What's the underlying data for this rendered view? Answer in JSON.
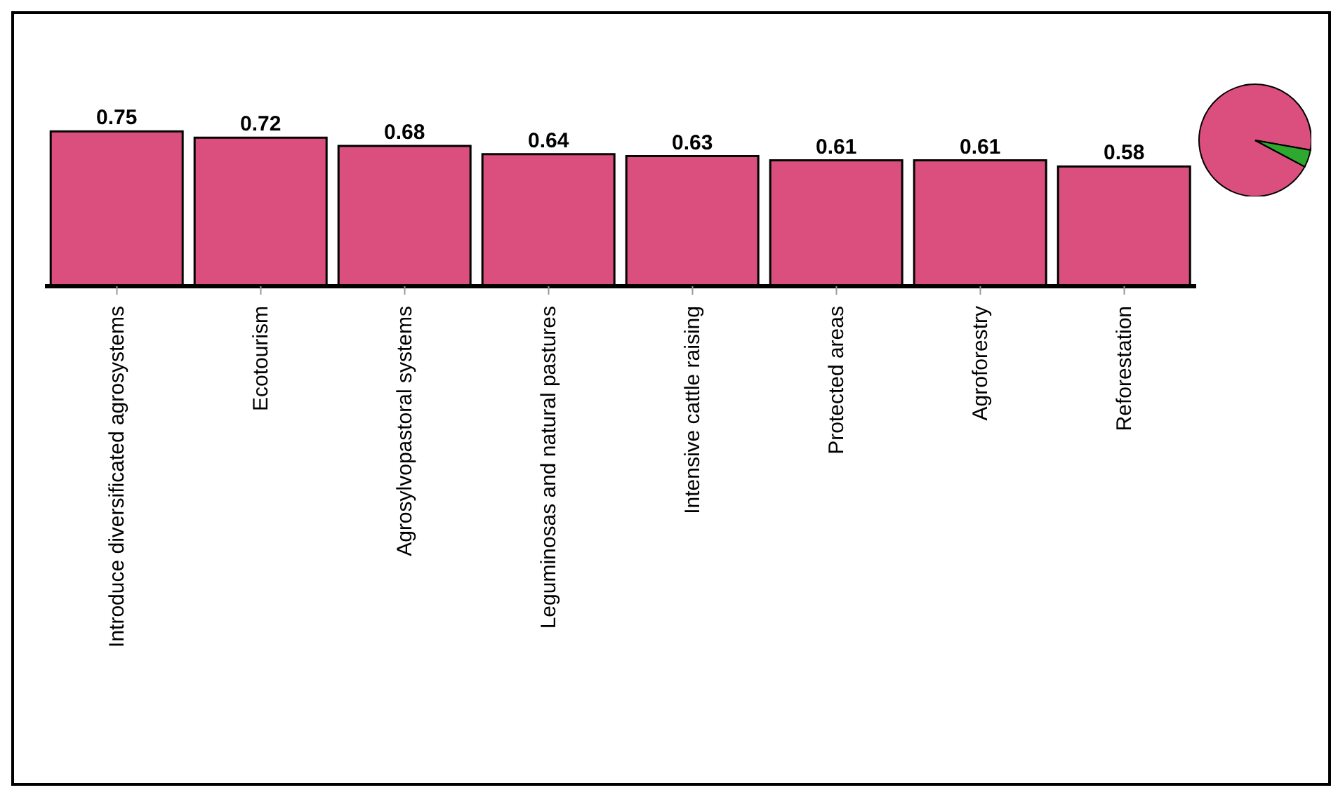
{
  "chart_data": [
    {
      "type": "bar",
      "categories": [
        "Introduce diversificated agrosystems",
        "Ecotourism",
        "Agrosylvopastoral systems",
        "Leguminosas and natural pastures",
        "Intensive cattle raising",
        "Protected areas",
        "Agroforestry",
        "Reforestation"
      ],
      "series": [
        {
          "color": "#db4f7e",
          "values": [
            0.75,
            0.72,
            0.68,
            0.64,
            0.63,
            0.61,
            0.61,
            0.58
          ]
        }
      ],
      "data_labels": true,
      "grid": false,
      "legend": false
    },
    {
      "type": "pie",
      "categories": [
        null,
        null
      ],
      "values": [
        95,
        5
      ],
      "colors": [
        "#db4f7e",
        "#2ea82e"
      ],
      "legend": false
    }
  ]
}
